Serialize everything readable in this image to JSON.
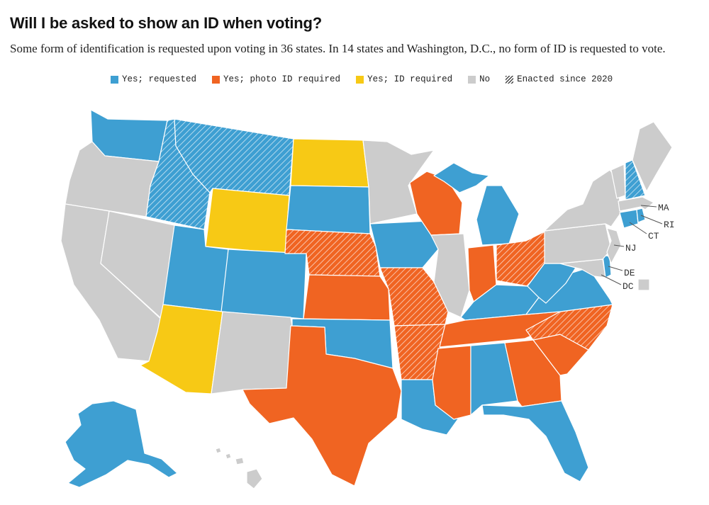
{
  "title": "Will I be asked to show an ID when voting?",
  "subtitle": "Some form of identification is requested upon voting in 36 states. In 14 states and Washington, D.C., no form of ID is requested to vote.",
  "legend": [
    {
      "key": "req",
      "label": "Yes; requested",
      "color": "#3e9fd2"
    },
    {
      "key": "photo",
      "label": "Yes; photo ID required",
      "color": "#f06422"
    },
    {
      "key": "idreq",
      "label": "Yes; ID required",
      "color": "#f7c915"
    },
    {
      "key": "no",
      "label": "No",
      "color": "#cccccc"
    },
    {
      "key": "new",
      "label": "Enacted since 2020",
      "color": "#444444"
    }
  ],
  "labels": {
    "MA": "MA",
    "RI": "RI",
    "CT": "CT",
    "NJ": "NJ",
    "DE": "DE",
    "DC": "DC"
  },
  "states": {
    "AK": {
      "cat": "req",
      "new": false
    },
    "AL": {
      "cat": "req",
      "new": false
    },
    "AR": {
      "cat": "photo",
      "new": true
    },
    "AZ": {
      "cat": "idreq",
      "new": false
    },
    "CA": {
      "cat": "no",
      "new": false
    },
    "CO": {
      "cat": "req",
      "new": false
    },
    "CT": {
      "cat": "req",
      "new": false
    },
    "DE": {
      "cat": "req",
      "new": false
    },
    "DC": {
      "cat": "no",
      "new": false
    },
    "FL": {
      "cat": "req",
      "new": false
    },
    "GA": {
      "cat": "photo",
      "new": false
    },
    "HI": {
      "cat": "no",
      "new": false
    },
    "IA": {
      "cat": "req",
      "new": false
    },
    "ID": {
      "cat": "req",
      "new": true
    },
    "IL": {
      "cat": "no",
      "new": false
    },
    "IN": {
      "cat": "photo",
      "new": false
    },
    "KS": {
      "cat": "photo",
      "new": false
    },
    "KY": {
      "cat": "req",
      "new": false
    },
    "LA": {
      "cat": "req",
      "new": false
    },
    "MA": {
      "cat": "no",
      "new": false
    },
    "MD": {
      "cat": "no",
      "new": false
    },
    "ME": {
      "cat": "no",
      "new": false
    },
    "MI": {
      "cat": "req",
      "new": false
    },
    "MN": {
      "cat": "no",
      "new": false
    },
    "MO": {
      "cat": "photo",
      "new": true
    },
    "MS": {
      "cat": "photo",
      "new": false
    },
    "MT": {
      "cat": "req",
      "new": true
    },
    "NC": {
      "cat": "photo",
      "new": true
    },
    "ND": {
      "cat": "idreq",
      "new": false
    },
    "NE": {
      "cat": "photo",
      "new": true
    },
    "NH": {
      "cat": "req",
      "new": true
    },
    "NJ": {
      "cat": "no",
      "new": false
    },
    "NM": {
      "cat": "no",
      "new": false
    },
    "NV": {
      "cat": "no",
      "new": false
    },
    "NY": {
      "cat": "no",
      "new": false
    },
    "OH": {
      "cat": "photo",
      "new": true
    },
    "OK": {
      "cat": "req",
      "new": false
    },
    "OR": {
      "cat": "no",
      "new": false
    },
    "PA": {
      "cat": "no",
      "new": false
    },
    "RI": {
      "cat": "req",
      "new": false
    },
    "SC": {
      "cat": "photo",
      "new": false
    },
    "SD": {
      "cat": "req",
      "new": false
    },
    "TN": {
      "cat": "photo",
      "new": false
    },
    "TX": {
      "cat": "photo",
      "new": false
    },
    "UT": {
      "cat": "req",
      "new": false
    },
    "VA": {
      "cat": "req",
      "new": false
    },
    "VT": {
      "cat": "no",
      "new": false
    },
    "WA": {
      "cat": "req",
      "new": false
    },
    "WI": {
      "cat": "photo",
      "new": false
    },
    "WV": {
      "cat": "req",
      "new": false
    },
    "WY": {
      "cat": "idreq",
      "new": false
    }
  }
}
